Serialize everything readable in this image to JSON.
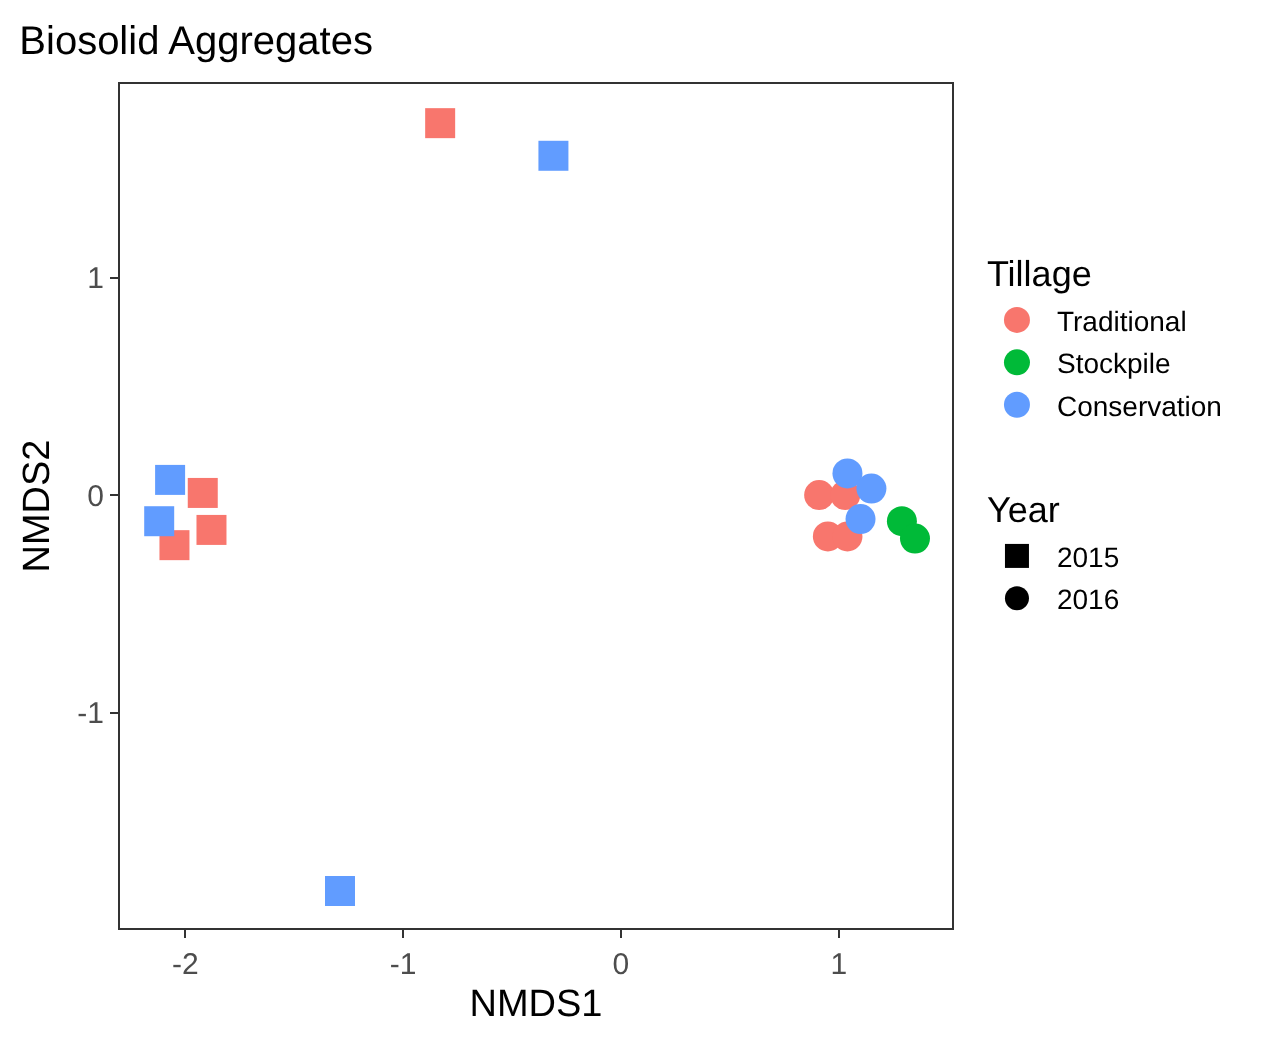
{
  "chart_data": {
    "type": "scatter",
    "title": "Biosolid Aggregates",
    "xlabel": "NMDS1",
    "ylabel": "NMDS2",
    "legend_title": "Tillage",
    "annotations": [
      "Year"
    ],
    "xlim": [
      -2.3,
      1.52
    ],
    "ylim": [
      -1.99,
      1.89
    ],
    "xticks": [
      -2,
      -1,
      0,
      1
    ],
    "yticks": [
      -1,
      0,
      1
    ],
    "legend": "right",
    "series": [
      {
        "color": "#f8766d",
        "marker": "square",
        "x": [
          -0.83,
          -1.92,
          -1.88,
          -2.05
        ],
        "values": [
          1.71,
          0.01,
          -0.16,
          -0.23
        ]
      },
      {
        "name": "Traditional",
        "color": "#f8766d",
        "marker": "circle",
        "x": [
          0.91,
          1.03,
          0.95,
          1.04
        ],
        "values": [
          0.0,
          0.0,
          -0.19,
          -0.19
        ]
      },
      {
        "name": "Stockpile",
        "color": "#00ba38",
        "marker": "circle",
        "x": [
          1.29,
          1.35
        ],
        "values": [
          -0.12,
          -0.2
        ]
      },
      {
        "color": "#619cff",
        "marker": "square",
        "x": [
          -0.31,
          -2.07,
          -2.12,
          -1.29
        ],
        "values": [
          1.56,
          0.07,
          -0.12,
          -1.82
        ]
      },
      {
        "name": "Conservation",
        "color": "#619cff",
        "marker": "circle",
        "x": [
          1.04,
          1.15,
          1.1
        ],
        "values": [
          0.1,
          0.03,
          -0.11
        ]
      },
      {
        "name": "2015",
        "color": "#000000",
        "marker": "square"
      },
      {
        "name": "2016",
        "color": "#000000",
        "marker": "circle"
      }
    ]
  }
}
